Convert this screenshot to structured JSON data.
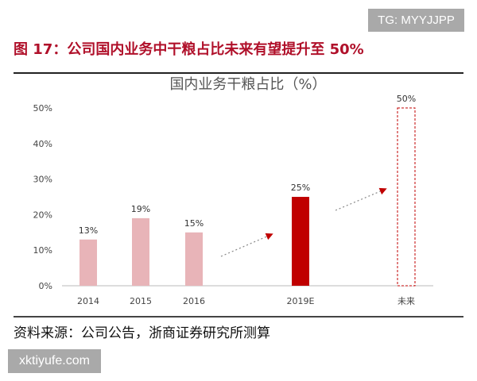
{
  "watermark_top": "TG: MYYJJPP",
  "figure_title": "图 17：公司国内业务中干粮占比未来有望提升至 50%",
  "source": "资料来源：公司公告，浙商证券研究所测算",
  "watermark_bottom": "xktiyufe.com",
  "chart_data": {
    "type": "bar",
    "title": "国内业务干粮占比（%）",
    "categories": [
      "2014",
      "2015",
      "2016",
      "2019E",
      "未来"
    ],
    "values": [
      13,
      19,
      15,
      25,
      50
    ],
    "data_labels": [
      "13%",
      "19%",
      "15%",
      "25%",
      "50%"
    ],
    "ylim": [
      0,
      50
    ],
    "yticks": [
      "0%",
      "10%",
      "20%",
      "30%",
      "40%",
      "50%"
    ],
    "grid": false,
    "bar_styles": [
      "historical",
      "historical",
      "historical",
      "estimate",
      "target-dashed"
    ],
    "colors": {
      "historical": "#e8b4b8",
      "estimate": "#c00000",
      "target_outline": "#c00000",
      "arrow": "#c00000",
      "title": "#b0102a"
    },
    "annotations": [
      "dotted-arrow 2016→2019E",
      "dotted-arrow 2019E→未来"
    ]
  }
}
